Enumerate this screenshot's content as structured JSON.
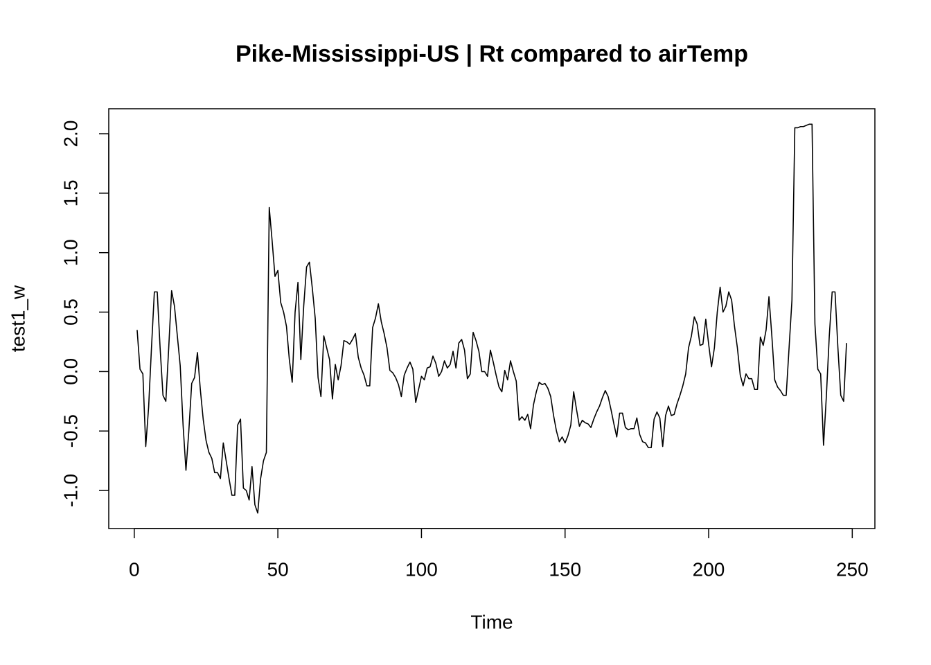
{
  "chart_data": {
    "type": "line",
    "title": "Pike-Mississippi-US | Rt compared to airTemp",
    "xlabel": "Time",
    "ylabel": "test1_w",
    "color": "#000000",
    "x": [
      1,
      2,
      3,
      4,
      5,
      6,
      7,
      8,
      9,
      10,
      11,
      12,
      13,
      14,
      15,
      16,
      17,
      18,
      19,
      20,
      21,
      22,
      23,
      24,
      25,
      26,
      27,
      28,
      29,
      30,
      31,
      32,
      33,
      34,
      35,
      36,
      37,
      38,
      39,
      40,
      41,
      42,
      43,
      44,
      45,
      46,
      47,
      48,
      49,
      50,
      51,
      52,
      53,
      54,
      55,
      56,
      57,
      58,
      59,
      60,
      61,
      62,
      63,
      64,
      65,
      66,
      67,
      68,
      69,
      70,
      71,
      72,
      73,
      74,
      75,
      76,
      77,
      78,
      79,
      80,
      81,
      82,
      83,
      84,
      85,
      86,
      87,
      88,
      89,
      90,
      91,
      92,
      93,
      94,
      95,
      96,
      97,
      98,
      99,
      100,
      101,
      102,
      103,
      104,
      105,
      106,
      107,
      108,
      109,
      110,
      111,
      112,
      113,
      114,
      115,
      116,
      117,
      118,
      119,
      120,
      121,
      122,
      123,
      124,
      125,
      126,
      127,
      128,
      129,
      130,
      131,
      132,
      133,
      134,
      135,
      136,
      137,
      138,
      139,
      140,
      141,
      142,
      143,
      144,
      145,
      146,
      147,
      148,
      149,
      150,
      151,
      152,
      153,
      154,
      155,
      156,
      157,
      158,
      159,
      160,
      161,
      162,
      163,
      164,
      165,
      166,
      167,
      168,
      169,
      170,
      171,
      172,
      173,
      174,
      175,
      176,
      177,
      178,
      179,
      180,
      181,
      182,
      183,
      184,
      185,
      186,
      187,
      188,
      189,
      190,
      191,
      192,
      193,
      194,
      195,
      196,
      197,
      198,
      199,
      200,
      201,
      202,
      203,
      204,
      205,
      206,
      207,
      208,
      209,
      210,
      211,
      212,
      213,
      214,
      215,
      216,
      217,
      218,
      219,
      220,
      221,
      222,
      223,
      224,
      225,
      226,
      227,
      228,
      229,
      230,
      231,
      232,
      233,
      234,
      235,
      236,
      237,
      238,
      239,
      240,
      241,
      242,
      243,
      244,
      245,
      246,
      247,
      248
    ],
    "values": [
      0.35,
      0.02,
      -0.02,
      -0.63,
      -0.3,
      0.2,
      0.67,
      0.67,
      0.2,
      -0.2,
      -0.25,
      0.2,
      0.68,
      0.55,
      0.3,
      0.05,
      -0.45,
      -0.83,
      -0.5,
      -0.1,
      -0.05,
      0.16,
      -0.15,
      -0.4,
      -0.58,
      -0.68,
      -0.73,
      -0.85,
      -0.85,
      -0.9,
      -0.6,
      -0.75,
      -0.9,
      -1.04,
      -1.04,
      -0.45,
      -0.4,
      -0.98,
      -1.0,
      -1.08,
      -0.8,
      -1.12,
      -1.19,
      -0.9,
      -0.75,
      -0.68,
      1.38,
      1.1,
      0.8,
      0.85,
      0.58,
      0.5,
      0.38,
      0.1,
      -0.09,
      0.5,
      0.75,
      0.1,
      0.55,
      0.88,
      0.92,
      0.7,
      0.45,
      -0.05,
      -0.21,
      0.3,
      0.2,
      0.1,
      -0.23,
      0.06,
      -0.07,
      0.05,
      0.26,
      0.25,
      0.23,
      0.27,
      0.32,
      0.12,
      0.03,
      -0.03,
      -0.12,
      -0.12,
      0.37,
      0.45,
      0.57,
      0.42,
      0.32,
      0.2,
      0.01,
      -0.01,
      -0.05,
      -0.11,
      -0.21,
      -0.03,
      0.03,
      0.08,
      0.02,
      -0.26,
      -0.15,
      -0.04,
      -0.07,
      0.03,
      0.04,
      0.13,
      0.07,
      -0.04,
      0.0,
      0.09,
      0.03,
      0.06,
      0.17,
      0.03,
      0.24,
      0.27,
      0.18,
      -0.06,
      -0.02,
      0.33,
      0.26,
      0.17,
      0.0,
      0.0,
      -0.04,
      0.18,
      0.08,
      -0.03,
      -0.13,
      -0.17,
      0.01,
      -0.07,
      0.09,
      0.0,
      -0.08,
      -0.41,
      -0.38,
      -0.41,
      -0.36,
      -0.48,
      -0.28,
      -0.17,
      -0.09,
      -0.11,
      -0.1,
      -0.14,
      -0.21,
      -0.37,
      -0.5,
      -0.59,
      -0.55,
      -0.6,
      -0.54,
      -0.45,
      -0.17,
      -0.32,
      -0.46,
      -0.41,
      -0.43,
      -0.44,
      -0.47,
      -0.4,
      -0.34,
      -0.29,
      -0.22,
      -0.16,
      -0.21,
      -0.32,
      -0.44,
      -0.55,
      -0.35,
      -0.35,
      -0.47,
      -0.49,
      -0.48,
      -0.48,
      -0.39,
      -0.53,
      -0.59,
      -0.6,
      -0.64,
      -0.64,
      -0.4,
      -0.34,
      -0.39,
      -0.63,
      -0.37,
      -0.29,
      -0.37,
      -0.36,
      -0.27,
      -0.2,
      -0.12,
      -0.02,
      0.2,
      0.3,
      0.46,
      0.4,
      0.22,
      0.23,
      0.44,
      0.23,
      0.04,
      0.2,
      0.5,
      0.71,
      0.5,
      0.55,
      0.67,
      0.6,
      0.38,
      0.2,
      -0.03,
      -0.12,
      -0.02,
      -0.06,
      -0.06,
      -0.15,
      -0.15,
      0.29,
      0.22,
      0.35,
      0.63,
      0.3,
      -0.07,
      -0.13,
      -0.16,
      -0.2,
      -0.2,
      0.2,
      0.6,
      2.05,
      2.05,
      2.06,
      2.06,
      2.07,
      2.08,
      2.08,
      0.4,
      0.02,
      -0.02,
      -0.62,
      -0.2,
      0.3,
      0.67,
      0.67,
      0.2,
      -0.2,
      -0.25,
      0.24
    ],
    "xlim": [
      -8.88,
      257.88
    ],
    "xticks": [
      0,
      50,
      100,
      150,
      200,
      250
    ],
    "ylim": [
      -1.32,
      2.21
    ],
    "yticks": [
      {
        "value": -1,
        "label": "-1.0"
      },
      -0.5,
      {
        "value": 0,
        "label": "0.0"
      },
      0.5,
      {
        "value": 1,
        "label": "1.0"
      },
      1.5,
      {
        "value": 2,
        "label": "2.0"
      }
    ]
  }
}
